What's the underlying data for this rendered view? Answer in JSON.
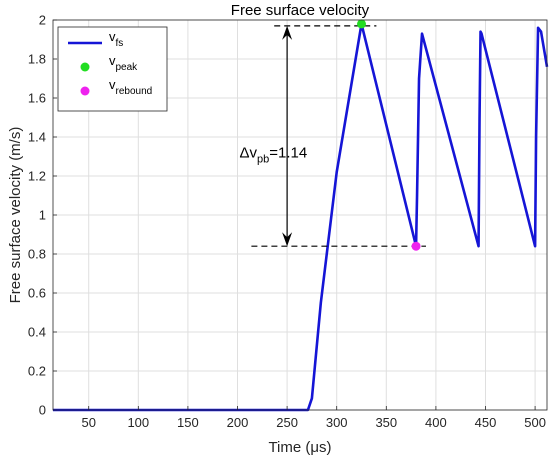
{
  "chart_data": {
    "type": "line",
    "title": "Free surface velocity",
    "xlabel": "Time (μs)",
    "ylabel": "Free surface velocity (m/s)",
    "xlim": [
      14,
      512
    ],
    "ylim": [
      0,
      2
    ],
    "xticks": [
      50,
      100,
      150,
      200,
      250,
      300,
      350,
      400,
      450,
      500
    ],
    "xtick_labels": [
      "50",
      "100",
      "150",
      "200",
      "250",
      "300",
      "350",
      "400",
      "450",
      "500"
    ],
    "yticks": [
      0,
      0.2,
      0.4,
      0.6,
      0.8,
      1,
      1.2,
      1.4,
      1.6,
      1.8,
      2
    ],
    "ytick_labels": [
      "0",
      "0.2",
      "0.4",
      "0.6",
      "0.8",
      "1",
      "1.2",
      "1.4",
      "1.6",
      "1.8",
      "2"
    ],
    "grid": true,
    "legend_position": "top-left",
    "series": [
      {
        "name_main": "v",
        "name_sub": "fs",
        "kind": "line",
        "color": "#1515d6",
        "x": [
          14,
          271,
          275,
          284,
          300,
          325,
          380,
          381,
          383,
          386,
          443,
          444,
          445,
          446,
          500,
          501,
          503,
          506,
          512
        ],
        "y": [
          0,
          0,
          0.06,
          0.55,
          1.22,
          1.98,
          0.84,
          1.1,
          1.7,
          1.93,
          0.84,
          1.5,
          1.94,
          1.93,
          0.84,
          1.4,
          1.96,
          1.94,
          1.76
        ]
      },
      {
        "name_main": "v",
        "name_sub": "peak",
        "kind": "marker",
        "color": "#22dd22",
        "x": [
          325
        ],
        "y": [
          1.98
        ]
      },
      {
        "name_main": "v",
        "name_sub": "rebound",
        "kind": "marker",
        "color": "#ee22ee",
        "x": [
          380
        ],
        "y": [
          0.84
        ]
      }
    ],
    "annotation": {
      "text_main": "Δv",
      "text_sub": "pb",
      "text_value": "=1.14",
      "x_arrow": 250,
      "y_top": 1.97,
      "y_bottom": 0.84,
      "dash_top_x": [
        237,
        340
      ],
      "dash_bottom_x": [
        214,
        390
      ],
      "label_x": 202,
      "label_y": 1.32
    }
  }
}
